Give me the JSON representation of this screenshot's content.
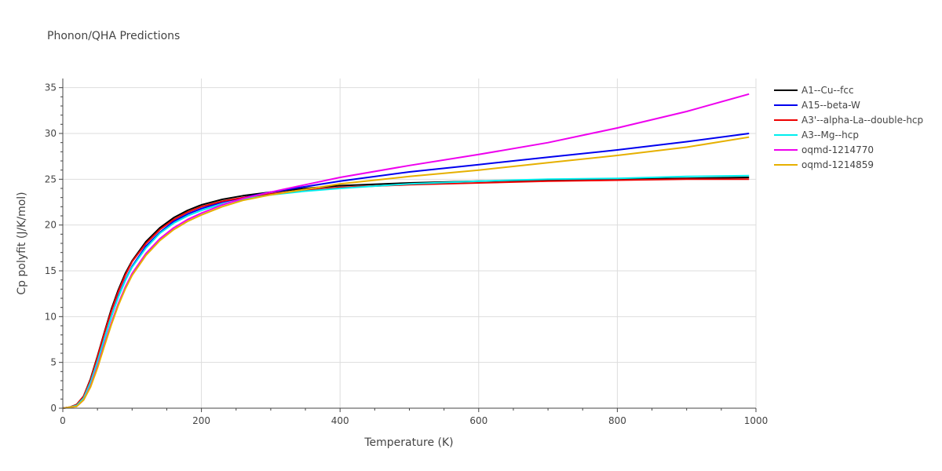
{
  "chart_data": {
    "type": "line",
    "title": "Phonon/QHA Predictions",
    "xlabel": "Temperature (K)",
    "ylabel": "Cp polyfit (J/K/mol)",
    "xlim": [
      0,
      1000
    ],
    "ylim": [
      0,
      36
    ],
    "xticks": [
      0,
      200,
      400,
      600,
      800,
      1000
    ],
    "yticks": [
      0,
      5,
      10,
      15,
      20,
      25,
      30,
      35
    ],
    "grid": true,
    "legend_position": "top-right",
    "series": [
      {
        "name": "A1--Cu--fcc",
        "color": "#000000",
        "x": [
          0,
          10,
          20,
          30,
          40,
          50,
          60,
          70,
          80,
          90,
          100,
          120,
          140,
          160,
          180,
          200,
          230,
          260,
          300,
          350,
          400,
          500,
          600,
          700,
          800,
          900,
          990
        ],
        "y": [
          0,
          0.1,
          0.4,
          1.3,
          3.2,
          5.7,
          8.3,
          10.8,
          12.9,
          14.7,
          16.1,
          18.2,
          19.7,
          20.8,
          21.6,
          22.2,
          22.8,
          23.2,
          23.6,
          24.0,
          24.3,
          24.6,
          24.8,
          24.9,
          25.0,
          25.1,
          25.2
        ]
      },
      {
        "name": "A15--beta-W",
        "color": "#0000ee",
        "x": [
          0,
          10,
          20,
          30,
          40,
          50,
          60,
          70,
          80,
          90,
          100,
          120,
          140,
          160,
          180,
          200,
          230,
          260,
          300,
          350,
          400,
          500,
          600,
          700,
          800,
          900,
          990
        ],
        "y": [
          0,
          0.1,
          0.3,
          1.1,
          2.7,
          5.0,
          7.6,
          10.0,
          12.2,
          14.0,
          15.5,
          17.7,
          19.2,
          20.4,
          21.2,
          21.8,
          22.5,
          23.0,
          23.6,
          24.2,
          24.8,
          25.8,
          26.6,
          27.4,
          28.2,
          29.1,
          30.0
        ]
      },
      {
        "name": "A3'--alpha-La--double-hcp",
        "color": "#ee0000",
        "x": [
          0,
          10,
          20,
          30,
          40,
          50,
          60,
          70,
          80,
          90,
          100,
          120,
          140,
          160,
          180,
          200,
          230,
          260,
          300,
          350,
          400,
          500,
          600,
          700,
          800,
          900,
          990
        ],
        "y": [
          0,
          0.1,
          0.4,
          1.3,
          3.1,
          5.6,
          8.2,
          10.6,
          12.7,
          14.5,
          16.0,
          18.0,
          19.5,
          20.6,
          21.4,
          22.0,
          22.6,
          23.0,
          23.4,
          23.8,
          24.1,
          24.4,
          24.6,
          24.8,
          24.9,
          25.0,
          25.0
        ]
      },
      {
        "name": "A3--Mg--hcp",
        "color": "#00eeee",
        "x": [
          0,
          10,
          20,
          30,
          40,
          50,
          60,
          70,
          80,
          90,
          100,
          120,
          140,
          160,
          180,
          200,
          230,
          260,
          300,
          350,
          400,
          500,
          600,
          700,
          800,
          900,
          990
        ],
        "y": [
          0,
          0.1,
          0.3,
          1.1,
          2.8,
          5.1,
          7.6,
          10.0,
          12.1,
          13.9,
          15.4,
          17.5,
          19.1,
          20.2,
          21.0,
          21.6,
          22.3,
          22.8,
          23.3,
          23.7,
          24.0,
          24.5,
          24.8,
          25.0,
          25.1,
          25.3,
          25.4
        ]
      },
      {
        "name": "oqmd-1214770",
        "color": "#ee00ee",
        "x": [
          0,
          10,
          20,
          30,
          40,
          50,
          60,
          70,
          80,
          90,
          100,
          120,
          140,
          160,
          180,
          200,
          230,
          260,
          300,
          350,
          400,
          500,
          600,
          700,
          800,
          900,
          990
        ],
        "y": [
          0,
          0.1,
          0.2,
          0.9,
          2.4,
          4.6,
          7.0,
          9.3,
          11.4,
          13.2,
          14.7,
          16.9,
          18.5,
          19.7,
          20.6,
          21.3,
          22.2,
          22.9,
          23.6,
          24.4,
          25.2,
          26.5,
          27.7,
          29.0,
          30.6,
          32.4,
          34.3
        ]
      },
      {
        "name": "oqmd-1214859",
        "color": "#e6b000",
        "x": [
          0,
          10,
          20,
          30,
          40,
          50,
          60,
          70,
          80,
          90,
          100,
          120,
          140,
          160,
          180,
          200,
          230,
          260,
          300,
          350,
          400,
          500,
          600,
          700,
          800,
          900,
          990
        ],
        "y": [
          0,
          0.1,
          0.2,
          0.9,
          2.3,
          4.4,
          6.8,
          9.1,
          11.2,
          13.0,
          14.5,
          16.7,
          18.3,
          19.5,
          20.4,
          21.1,
          22.0,
          22.7,
          23.3,
          23.9,
          24.5,
          25.3,
          26.0,
          26.8,
          27.6,
          28.5,
          29.6
        ]
      }
    ]
  }
}
